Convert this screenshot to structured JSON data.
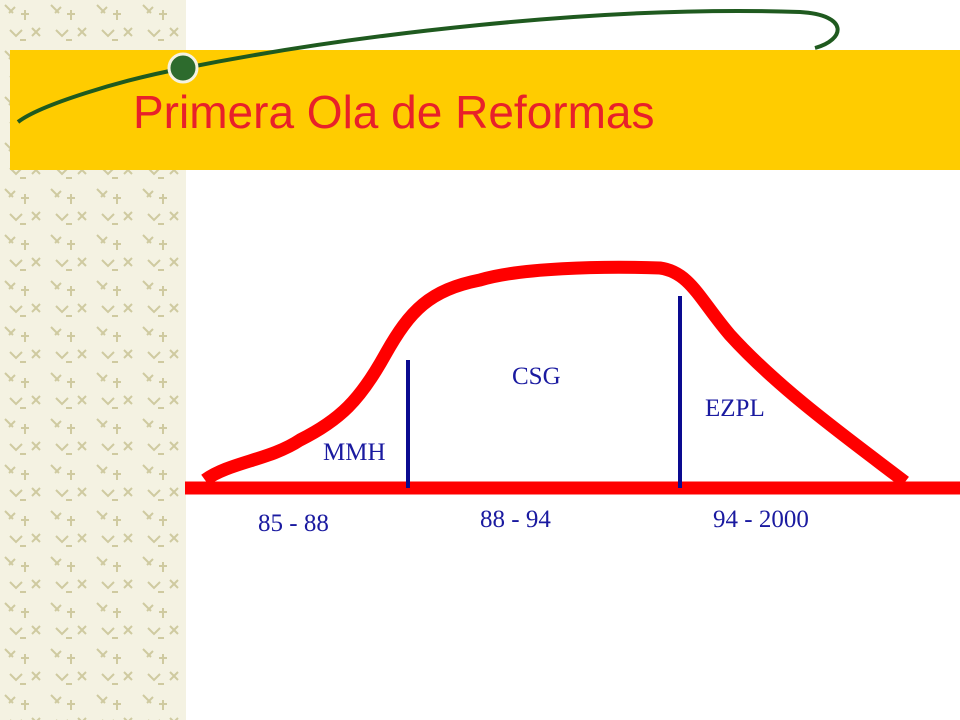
{
  "title": "Primera Ola de Reformas",
  "periods": [
    {
      "label": "MMH",
      "years": "85 - 88"
    },
    {
      "label": "CSG",
      "years": "88 - 94"
    },
    {
      "label": "EZPL",
      "years": "94 - 2000"
    }
  ]
}
